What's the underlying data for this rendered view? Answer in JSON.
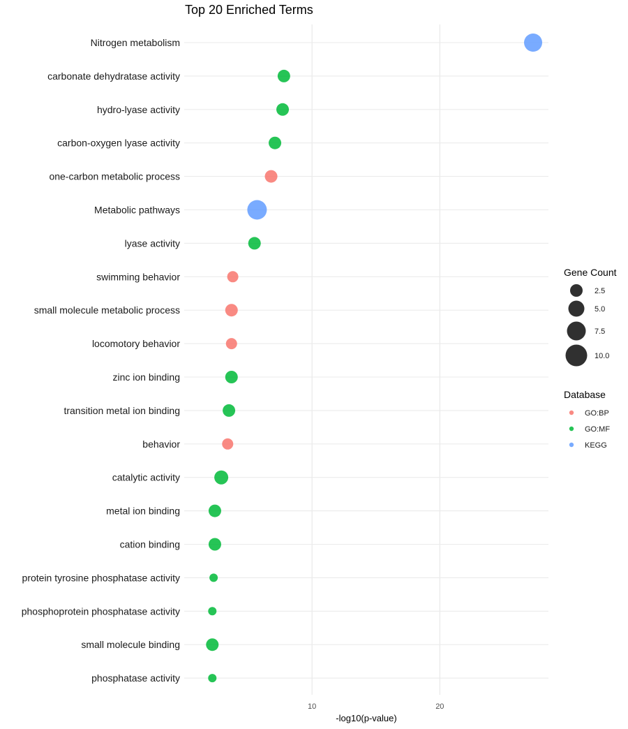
{
  "chart_data": {
    "type": "scatter",
    "title": "Top 20 Enriched Terms",
    "xlabel": "-log10(p-value)",
    "ylabel": "",
    "xlim": [
      0,
      28.5
    ],
    "x_ticks": [
      10,
      20
    ],
    "grid": true,
    "legend_position": "right",
    "colors": {
      "GO:BP": "#F8766D",
      "GO:MF": "#00BA38",
      "KEGG": "#619CFF"
    },
    "size_legend": {
      "title": "Gene Count",
      "values": [
        2.5,
        5.0,
        7.5,
        10.0
      ]
    },
    "color_legend": {
      "title": "Database",
      "entries": [
        "GO:BP",
        "GO:MF",
        "KEGG"
      ]
    },
    "points": [
      {
        "term": "Nitrogen metabolism",
        "x": 27.3,
        "database": "KEGG",
        "gene_count": 8
      },
      {
        "term": "carbonate dehydratase activity",
        "x": 7.8,
        "database": "GO:MF",
        "gene_count": 4
      },
      {
        "term": "hydro-lyase activity",
        "x": 7.7,
        "database": "GO:MF",
        "gene_count": 4
      },
      {
        "term": "carbon-oxygen lyase activity",
        "x": 7.1,
        "database": "GO:MF",
        "gene_count": 4
      },
      {
        "term": "one-carbon metabolic process",
        "x": 6.8,
        "database": "GO:BP",
        "gene_count": 4
      },
      {
        "term": "Metabolic pathways",
        "x": 5.7,
        "database": "KEGG",
        "gene_count": 9
      },
      {
        "term": "lyase activity",
        "x": 5.5,
        "database": "GO:MF",
        "gene_count": 4
      },
      {
        "term": "swimming behavior",
        "x": 3.8,
        "database": "GO:BP",
        "gene_count": 3
      },
      {
        "term": "small molecule metabolic process",
        "x": 3.7,
        "database": "GO:BP",
        "gene_count": 4
      },
      {
        "term": "locomotory behavior",
        "x": 3.7,
        "database": "GO:BP",
        "gene_count": 3
      },
      {
        "term": "zinc ion binding",
        "x": 3.7,
        "database": "GO:MF",
        "gene_count": 4
      },
      {
        "term": "transition metal ion binding",
        "x": 3.5,
        "database": "GO:MF",
        "gene_count": 4
      },
      {
        "term": "behavior",
        "x": 3.4,
        "database": "GO:BP",
        "gene_count": 3
      },
      {
        "term": "catalytic activity",
        "x": 2.9,
        "database": "GO:MF",
        "gene_count": 5
      },
      {
        "term": "metal ion binding",
        "x": 2.4,
        "database": "GO:MF",
        "gene_count": 4
      },
      {
        "term": "cation binding",
        "x": 2.4,
        "database": "GO:MF",
        "gene_count": 4
      },
      {
        "term": "protein tyrosine phosphatase activity",
        "x": 2.3,
        "database": "GO:MF",
        "gene_count": 1
      },
      {
        "term": "phosphoprotein phosphatase activity",
        "x": 2.2,
        "database": "GO:MF",
        "gene_count": 1
      },
      {
        "term": "small molecule binding",
        "x": 2.2,
        "database": "GO:MF",
        "gene_count": 4
      },
      {
        "term": "phosphatase activity",
        "x": 2.2,
        "database": "GO:MF",
        "gene_count": 1
      }
    ]
  }
}
